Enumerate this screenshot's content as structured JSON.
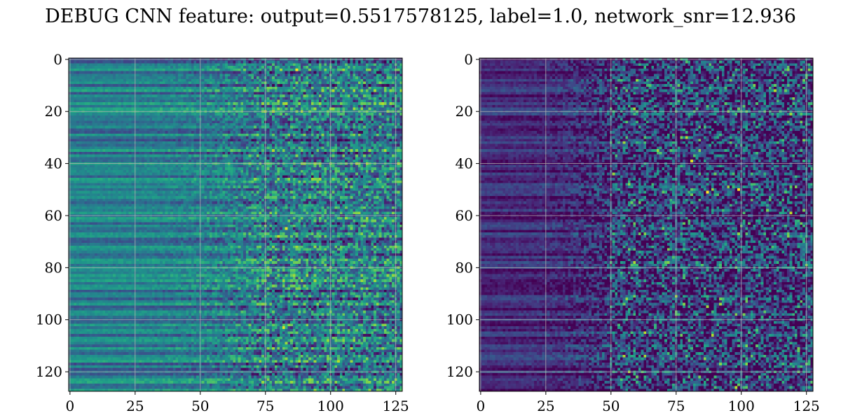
{
  "chart_data": {
    "type": "heatmap",
    "title": "DEBUG CNN feature: output=0.5517578125, label=1.0, network_snr=12.936",
    "colormap": "viridis",
    "grid": true,
    "panels": [
      {
        "name": "left-feature-map",
        "rows": 128,
        "cols": 128,
        "xlim": [
          -0.5,
          127.5
        ],
        "ylim": [
          127.5,
          -0.5
        ],
        "xticks": [
          0,
          25,
          50,
          75,
          100,
          125
        ],
        "yticks": [
          0,
          20,
          40,
          60,
          80,
          100,
          120
        ],
        "xlabel": "",
        "ylabel": "",
        "pattern": {
          "low_noise_cols": [
            0,
            75
          ],
          "high_noise_cols": [
            75,
            127
          ],
          "base_level": 0.42,
          "row_variation": 0.18,
          "noise_amplitude": 0.3
        },
        "hotspots": [
          {
            "x": 87,
            "y": 4,
            "v": 1.0
          },
          {
            "x": 80,
            "y": 16,
            "v": 0.85
          },
          {
            "x": 83,
            "y": 65,
            "v": 0.95
          },
          {
            "x": 80,
            "y": 68,
            "v": 0.9
          },
          {
            "x": 82,
            "y": 103,
            "v": 0.95
          },
          {
            "x": 83,
            "y": 109,
            "v": 0.85
          },
          {
            "x": 108,
            "y": 65,
            "v": 0.8
          },
          {
            "x": 98,
            "y": 79,
            "v": 0.8
          }
        ]
      },
      {
        "name": "right-feature-map",
        "rows": 128,
        "cols": 128,
        "xlim": [
          -0.5,
          127.5
        ],
        "ylim": [
          127.5,
          -0.5
        ],
        "xticks": [
          0,
          25,
          50,
          75,
          100,
          125
        ],
        "yticks": [
          0,
          20,
          40,
          60,
          80,
          100,
          120
        ],
        "xlabel": "",
        "ylabel": "",
        "pattern": {
          "low_noise_cols": [
            0,
            50
          ],
          "high_noise_cols": [
            50,
            127
          ],
          "base_level": 0.12,
          "row_variation": 0.12,
          "noise_amplitude": 0.35
        },
        "hotspots": [
          {
            "x": 81,
            "y": 39,
            "v": 0.95
          },
          {
            "x": 87,
            "y": 51,
            "v": 1.0
          },
          {
            "x": 99,
            "y": 50,
            "v": 1.0
          },
          {
            "x": 119,
            "y": 59,
            "v": 0.9
          },
          {
            "x": 105,
            "y": 10,
            "v": 0.8
          },
          {
            "x": 87,
            "y": 95,
            "v": 0.85
          },
          {
            "x": 92,
            "y": 94,
            "v": 0.85
          },
          {
            "x": 101,
            "y": 98,
            "v": 0.8
          },
          {
            "x": 98,
            "y": 126,
            "v": 0.9
          },
          {
            "x": 84,
            "y": 122,
            "v": 0.8
          }
        ]
      }
    ]
  }
}
